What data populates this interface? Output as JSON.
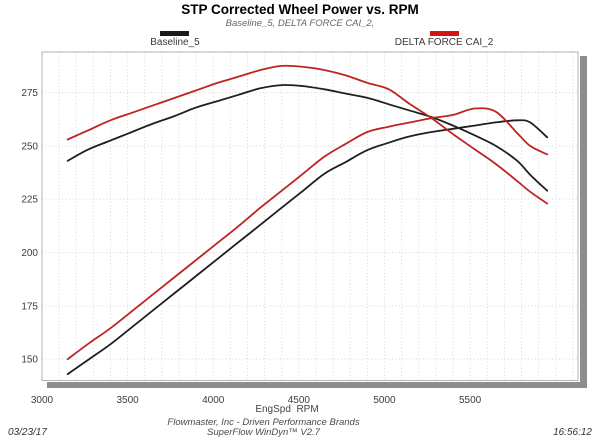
{
  "header": {
    "title": "STP Corrected Wheel Power vs. RPM",
    "subtitle": "Baseline_5, DELTA FORCE CAI_2,"
  },
  "legend": {
    "items": [
      {
        "label": "Baseline_5",
        "color": "#1a1a1a"
      },
      {
        "label": "DELTA FORCE CAI_2",
        "color": "#d41414"
      }
    ]
  },
  "chart_data": {
    "type": "line",
    "title": "STP Corrected Wheel Power vs. RPM",
    "xlabel": "EngSpd  RPM",
    "ylabel": "",
    "legend_position": "top",
    "grid": {
      "x_step": 100,
      "y_step": 25,
      "style": "dotted"
    },
    "x_ticks": [
      3000,
      3500,
      4000,
      4500,
      5000,
      5500
    ],
    "y_ticks": [
      150,
      175,
      200,
      225,
      250,
      275
    ],
    "xlim": [
      3000,
      6130
    ],
    "ylim": [
      140,
      294
    ],
    "x": [
      3150,
      3275,
      3400,
      3525,
      3650,
      3775,
      3900,
      4025,
      4150,
      4275,
      4400,
      4525,
      4650,
      4775,
      4900,
      5025,
      5150,
      5275,
      5400,
      5525,
      5650,
      5775,
      5850,
      5950
    ],
    "series": [
      {
        "name": "Baseline_5 torque",
        "color": "#1f1f1f",
        "values": [
          243,
          248.5,
          252.5,
          256.5,
          260.5,
          264,
          268,
          271,
          274,
          277,
          278.5,
          278,
          276.5,
          274.5,
          272.5,
          269.5,
          266.5,
          263.5,
          259.5,
          255,
          250,
          243,
          236.5,
          229
        ]
      },
      {
        "name": "Baseline_5 power",
        "color": "#1f1f1f",
        "values": [
          143,
          150,
          157,
          165,
          173,
          181,
          189,
          197,
          205,
          213,
          221,
          229,
          237,
          242.5,
          248,
          251.5,
          254.5,
          256.5,
          258,
          259.5,
          261,
          262,
          261,
          254
        ]
      },
      {
        "name": "DELTA FORCE CAI_2 torque",
        "color": "#be2323",
        "values": [
          253,
          257.5,
          262,
          265.5,
          269,
          272.5,
          276,
          279.5,
          282.5,
          285.5,
          287.5,
          287,
          285.5,
          283,
          279.5,
          276.5,
          269.5,
          263,
          255.5,
          248.5,
          241.5,
          233.5,
          228.5,
          223
        ]
      },
      {
        "name": "DELTA FORCE CAI_2 power",
        "color": "#be2323",
        "values": [
          150,
          157.5,
          164.5,
          172.5,
          180.5,
          188.5,
          196.5,
          204.5,
          212.5,
          221,
          229,
          237,
          245,
          251,
          256.5,
          259,
          261,
          263,
          264.5,
          267.5,
          266,
          256,
          250,
          246
        ]
      }
    ]
  },
  "footer": {
    "company": "Flowmaster, Inc - Driven Performance Brands",
    "software": "SuperFlow WinDyn™ V2.7",
    "date": "03/23/17",
    "time": "16:56:12"
  }
}
